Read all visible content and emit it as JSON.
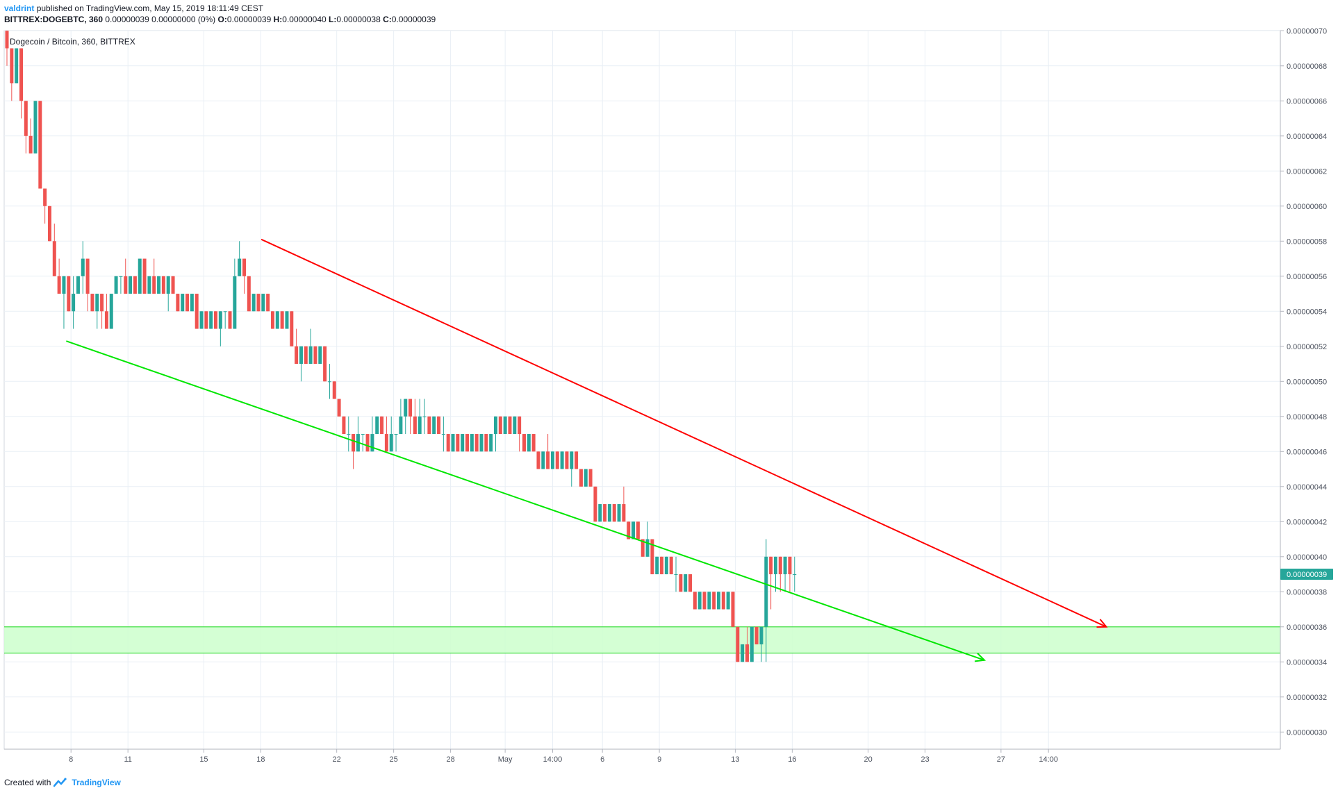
{
  "header": {
    "author": "valdrint",
    "published": "published on TradingView.com, May 15, 2019 18:11:49 CEST",
    "symbol": "BITTREX:DOGEBTC, 360",
    "change": "0.00000039 0.00000000 (0%)",
    "o_label": "O:",
    "o_val": "0.00000039",
    "h_label": "H:",
    "h_val": "0.00000040",
    "l_label": "L:",
    "l_val": "0.00000038",
    "c_label": "C:",
    "c_val": "0.00000039"
  },
  "footer": {
    "created_with": "Created with",
    "brand": "TradingView"
  },
  "colors": {
    "up": "#26a69a",
    "down": "#ef5350",
    "grid": "#e9eff5",
    "resistance": "#ff0000",
    "support": "#00e600",
    "zone_fill": "#ccffcc",
    "zone_stroke": "#33dd33",
    "price_tag": "#26a69a"
  },
  "chart_data": {
    "type": "candlestick",
    "title": "Dogecoin / Bitcoin, 360, BITTREX",
    "ylim": [
      2.87e-07,
      7e-08
    ],
    "y_ticks": [
      "0.00000070",
      "0.00000068",
      "0.00000066",
      "0.00000064",
      "0.00000062",
      "0.00000060",
      "0.00000058",
      "0.00000056",
      "0.00000054",
      "0.00000052",
      "0.00000050",
      "0.00000048",
      "0.00000046",
      "0.00000044",
      "0.00000042",
      "0.00000040",
      "0.00000038",
      "0.00000036",
      "0.00000034",
      "0.00000032",
      "0.00000030"
    ],
    "y_tick_values": [
      70,
      68,
      66,
      64,
      62,
      60,
      58,
      56,
      54,
      52,
      50,
      48,
      46,
      44,
      42,
      40,
      38,
      36,
      34,
      32,
      30
    ],
    "x_ticks": [
      "8",
      "11",
      "15",
      "18",
      "22",
      "25",
      "28",
      "May",
      "14:00",
      "6",
      "9",
      "13",
      "16",
      "20",
      "23",
      "27",
      "14:00"
    ],
    "x_tick_slots": [
      13.5,
      25.5,
      41.5,
      53.5,
      69.5,
      81.5,
      93.5,
      105,
      115,
      125.5,
      137.5,
      153.5,
      165.5,
      181.5,
      193.5,
      209.5,
      219.5
    ],
    "last_price": "0.00000039",
    "last_price_value": 39,
    "value_unit": "1e-8 BTC",
    "candles": [
      [
        70,
        69,
        70,
        68
      ],
      [
        69,
        67,
        69,
        66
      ],
      [
        67,
        69,
        69,
        67
      ],
      [
        69,
        66,
        69,
        65
      ],
      [
        66,
        64,
        66,
        63
      ],
      [
        64,
        63,
        65,
        63
      ],
      [
        63,
        66,
        66,
        63
      ],
      [
        66,
        61,
        66,
        61
      ],
      [
        61,
        60,
        61,
        59
      ],
      [
        60,
        58,
        60,
        58
      ],
      [
        58,
        56,
        59,
        56
      ],
      [
        56,
        55,
        57,
        55
      ],
      [
        55,
        56,
        56,
        53
      ],
      [
        56,
        54,
        56,
        54
      ],
      [
        54,
        55,
        56,
        53
      ],
      [
        55,
        56,
        56,
        55
      ],
      [
        56,
        57,
        58,
        55
      ],
      [
        57,
        55,
        57,
        54
      ],
      [
        55,
        54,
        55,
        54
      ],
      [
        54,
        55,
        55,
        53
      ],
      [
        55,
        54,
        55,
        53
      ],
      [
        54,
        53,
        55,
        53
      ],
      [
        53,
        55,
        55,
        53
      ],
      [
        55,
        56,
        56,
        55
      ],
      [
        56,
        56,
        56,
        55
      ],
      [
        56,
        55,
        57,
        55
      ],
      [
        55,
        56,
        56,
        55
      ],
      [
        56,
        55,
        56,
        55
      ],
      [
        55,
        57,
        57,
        55
      ],
      [
        57,
        55,
        57,
        55
      ],
      [
        55,
        56,
        56,
        55
      ],
      [
        56,
        55,
        57,
        55
      ],
      [
        55,
        56,
        56,
        55
      ],
      [
        56,
        55,
        56,
        55
      ],
      [
        55,
        56,
        56,
        54
      ],
      [
        56,
        55,
        56,
        55
      ],
      [
        55,
        54,
        55,
        54
      ],
      [
        54,
        55,
        55,
        54
      ],
      [
        55,
        54,
        55,
        54
      ],
      [
        54,
        55,
        55,
        54
      ],
      [
        55,
        53,
        55,
        53
      ],
      [
        53,
        54,
        54,
        53
      ],
      [
        54,
        53,
        54,
        53
      ],
      [
        53,
        54,
        54,
        53
      ],
      [
        54,
        53,
        54,
        53
      ],
      [
        53,
        54,
        54,
        52
      ],
      [
        54,
        54,
        54,
        53
      ],
      [
        54,
        53,
        54,
        53
      ],
      [
        53,
        56,
        57,
        53
      ],
      [
        56,
        57,
        58,
        56
      ],
      [
        57,
        56,
        57,
        55
      ],
      [
        56,
        54,
        56,
        54
      ],
      [
        54,
        55,
        55,
        54
      ],
      [
        55,
        54,
        55,
        54
      ],
      [
        54,
        55,
        55,
        54
      ],
      [
        55,
        54,
        55,
        54
      ],
      [
        54,
        53,
        54,
        53
      ],
      [
        53,
        54,
        54,
        53
      ],
      [
        54,
        53,
        54,
        53
      ],
      [
        53,
        54,
        54,
        53
      ],
      [
        54,
        52,
        54,
        52
      ],
      [
        52,
        51,
        53,
        51
      ],
      [
        51,
        52,
        52,
        50
      ],
      [
        52,
        51,
        52,
        51
      ],
      [
        51,
        52,
        53,
        51
      ],
      [
        52,
        51,
        52,
        51
      ],
      [
        51,
        52,
        52,
        51
      ],
      [
        52,
        50,
        52,
        50
      ],
      [
        50,
        50,
        51,
        49
      ],
      [
        50,
        49,
        50,
        49
      ],
      [
        49,
        48,
        49,
        48
      ],
      [
        48,
        47,
        48,
        47
      ],
      [
        47,
        47,
        48,
        46
      ],
      [
        47,
        46,
        47,
        45
      ],
      [
        46,
        47,
        48,
        46
      ],
      [
        47,
        47,
        47,
        46
      ],
      [
        47,
        46,
        47,
        46
      ],
      [
        46,
        47,
        48,
        46
      ],
      [
        47,
        48,
        48,
        47
      ],
      [
        48,
        47,
        48,
        47
      ],
      [
        47,
        46,
        48,
        46
      ],
      [
        46,
        47,
        48,
        46
      ],
      [
        47,
        47,
        47,
        46
      ],
      [
        47,
        48,
        49,
        47
      ],
      [
        48,
        49,
        49,
        47
      ],
      [
        49,
        48,
        49,
        47
      ],
      [
        48,
        47,
        49,
        47
      ],
      [
        47,
        48,
        49,
        47
      ],
      [
        48,
        48,
        49,
        47
      ],
      [
        48,
        47,
        48,
        47
      ],
      [
        47,
        48,
        48,
        47
      ],
      [
        48,
        47,
        48,
        47
      ],
      [
        47,
        47,
        48,
        46
      ],
      [
        47,
        46,
        47,
        46
      ],
      [
        46,
        47,
        47,
        46
      ],
      [
        47,
        46,
        47,
        46
      ],
      [
        46,
        47,
        47,
        46
      ],
      [
        47,
        46,
        47,
        46
      ],
      [
        46,
        47,
        47,
        46
      ],
      [
        47,
        46,
        47,
        46
      ],
      [
        46,
        47,
        47,
        46
      ],
      [
        47,
        46,
        47,
        46
      ],
      [
        46,
        47,
        47,
        46
      ],
      [
        47,
        48,
        48,
        46
      ],
      [
        48,
        47,
        48,
        47
      ],
      [
        47,
        48,
        48,
        47
      ],
      [
        48,
        47,
        48,
        47
      ],
      [
        47,
        48,
        48,
        47
      ],
      [
        48,
        47,
        48,
        46
      ],
      [
        47,
        46,
        47,
        46
      ],
      [
        46,
        47,
        47,
        46
      ],
      [
        47,
        46,
        47,
        46
      ],
      [
        46,
        45,
        46,
        45
      ],
      [
        45,
        46,
        46,
        45
      ],
      [
        46,
        45,
        47,
        45
      ],
      [
        45,
        46,
        46,
        45
      ],
      [
        46,
        45,
        46,
        45
      ],
      [
        45,
        46,
        46,
        45
      ],
      [
        46,
        45,
        46,
        45
      ],
      [
        45,
        46,
        46,
        44
      ],
      [
        46,
        45,
        46,
        45
      ],
      [
        45,
        44,
        45,
        44
      ],
      [
        44,
        45,
        45,
        44
      ],
      [
        45,
        44,
        45,
        44
      ],
      [
        44,
        42,
        44,
        42
      ],
      [
        42,
        43,
        43,
        42
      ],
      [
        43,
        42,
        43,
        42
      ],
      [
        42,
        43,
        43,
        42
      ],
      [
        43,
        42,
        43,
        42
      ],
      [
        42,
        43,
        43,
        42
      ],
      [
        43,
        42,
        44,
        42
      ],
      [
        42,
        41,
        42,
        41
      ],
      [
        41,
        42,
        42,
        41
      ],
      [
        42,
        41,
        42,
        41
      ],
      [
        41,
        40,
        41,
        40
      ],
      [
        40,
        41,
        42,
        40
      ],
      [
        41,
        39,
        41,
        39
      ],
      [
        39,
        40,
        40,
        39
      ],
      [
        40,
        39,
        40,
        39
      ],
      [
        39,
        40,
        40,
        39
      ],
      [
        40,
        39,
        40,
        39
      ],
      [
        39,
        39,
        40,
        38
      ],
      [
        39,
        38,
        39,
        38
      ],
      [
        38,
        39,
        39,
        38
      ],
      [
        39,
        38,
        39,
        38
      ],
      [
        38,
        37,
        38,
        37
      ],
      [
        37,
        38,
        38,
        37
      ],
      [
        38,
        37,
        38,
        37
      ],
      [
        37,
        38,
        38,
        37
      ],
      [
        38,
        37,
        38,
        37
      ],
      [
        37,
        38,
        38,
        37
      ],
      [
        38,
        37,
        38,
        37
      ],
      [
        37,
        38,
        38,
        37
      ],
      [
        38,
        36,
        38,
        36
      ],
      [
        36,
        34,
        36,
        34
      ],
      [
        34,
        35,
        35,
        34
      ],
      [
        35,
        34,
        36,
        34
      ],
      [
        34,
        36,
        36,
        34
      ],
      [
        36,
        35,
        36,
        35
      ],
      [
        35,
        36,
        36,
        34
      ],
      [
        36,
        40,
        41,
        34
      ],
      [
        40,
        39,
        40,
        37
      ],
      [
        39,
        40,
        40,
        38
      ],
      [
        40,
        39,
        40,
        38
      ],
      [
        39,
        40,
        40,
        38
      ],
      [
        40,
        39,
        40,
        38
      ],
      [
        39,
        39,
        40,
        38
      ]
    ],
    "resistance_line": {
      "from": [
        53.6,
        58.1
      ],
      "to": [
        231.7,
        36.0
      ]
    },
    "support_line": {
      "from": [
        12.5,
        52.3
      ],
      "to": [
        206.0,
        34.1
      ]
    },
    "support_zone": [
      34.5,
      36.0
    ]
  }
}
